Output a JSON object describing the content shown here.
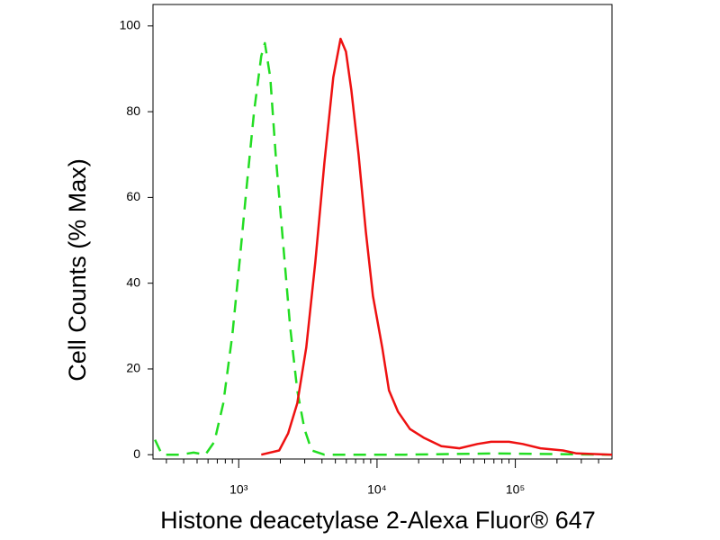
{
  "chart_data": {
    "type": "line",
    "x_label": "Histone deacetylase 2-Alexa Fluor® 647",
    "y_label": "Cell Counts (% Max)",
    "x_scale": "log",
    "xlim": [
      240,
      500000
    ],
    "ylim": [
      -1,
      105
    ],
    "xticks": [
      {
        "value": 1000,
        "label": "10³"
      },
      {
        "value": 10000,
        "label": "10⁴"
      },
      {
        "value": 100000,
        "label": "10⁵"
      }
    ],
    "xminor": [
      300,
      400,
      500,
      600,
      700,
      800,
      900,
      2000,
      3000,
      4000,
      5000,
      6000,
      7000,
      8000,
      9000,
      20000,
      30000,
      40000,
      50000,
      60000,
      70000,
      80000,
      90000,
      200000,
      300000,
      400000
    ],
    "yticks": [
      0,
      20,
      40,
      60,
      80,
      100
    ],
    "series": [
      {
        "color": "#22dd22",
        "line_style": "dashed",
        "x": [
          248,
          279,
          378,
          472,
          574,
          667,
          774,
          900,
          1015,
          1146,
          1291,
          1455,
          1545,
          1690,
          1850,
          2085,
          2350,
          2650,
          2990,
          3370,
          4160,
          16000,
          72000,
          500000
        ],
        "values": [
          3.5,
          0,
          0,
          0.5,
          0,
          3,
          12,
          28,
          45,
          63,
          80,
          93,
          96,
          88,
          70,
          50,
          30,
          15,
          6,
          1,
          0,
          0,
          0.3,
          0
        ]
      },
      {
        "color": "#ee1111",
        "line_style": "solid",
        "x": [
          1455,
          1960,
          2280,
          2650,
          3080,
          3580,
          4160,
          4830,
          5450,
          5960,
          6520,
          7350,
          8300,
          9350,
          10900,
          12200,
          14200,
          17300,
          21700,
          29200,
          39400,
          53200,
          66700,
          90000,
          113000,
          152000,
          221000,
          277000,
          500000
        ],
        "values": [
          0,
          1,
          5,
          12,
          25,
          45,
          68,
          88,
          97,
          94,
          85,
          70,
          52,
          37,
          25,
          15,
          10,
          6,
          4,
          2,
          1.5,
          2.5,
          3,
          3,
          2.5,
          1.5,
          1,
          0.3,
          0
        ]
      }
    ]
  }
}
